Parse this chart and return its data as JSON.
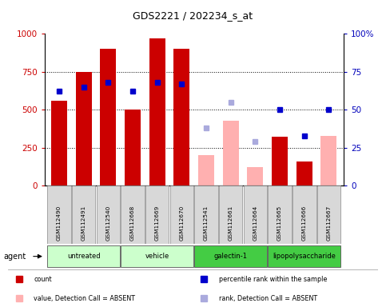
{
  "title": "GDS2221 / 202234_s_at",
  "samples": [
    "GSM112490",
    "GSM112491",
    "GSM112540",
    "GSM112668",
    "GSM112669",
    "GSM112670",
    "GSM112541",
    "GSM112661",
    "GSM112664",
    "GSM112665",
    "GSM112666",
    "GSM112667"
  ],
  "bar_values": [
    560,
    750,
    900,
    500,
    970,
    900,
    null,
    null,
    null,
    320,
    160,
    null
  ],
  "bar_absent_values": [
    null,
    null,
    null,
    null,
    null,
    null,
    200,
    430,
    125,
    null,
    null,
    330
  ],
  "rank_markers": [
    62,
    65,
    68,
    62,
    68,
    67,
    null,
    null,
    null,
    50,
    33,
    50
  ],
  "rank_absent_markers": [
    null,
    null,
    null,
    null,
    null,
    null,
    38,
    55,
    29,
    null,
    null,
    null
  ],
  "ylim_left": [
    0,
    1000
  ],
  "ylim_right": [
    0,
    100
  ],
  "yticks_left": [
    0,
    250,
    500,
    750,
    1000
  ],
  "yticks_right": [
    0,
    25,
    50,
    75,
    100
  ],
  "bar_color": "#cc0000",
  "bar_absent_color": "#ffb0b0",
  "rank_color": "#0000cc",
  "rank_absent_color": "#aaaadd",
  "left_axis_color": "#cc0000",
  "right_axis_color": "#0000bb",
  "bar_width": 0.65,
  "group_defs": [
    {
      "name": "untreated",
      "start": 0,
      "end": 2,
      "color": "#ccffcc"
    },
    {
      "name": "vehicle",
      "start": 3,
      "end": 5,
      "color": "#ccffcc"
    },
    {
      "name": "galectin-1",
      "start": 6,
      "end": 8,
      "color": "#44cc44"
    },
    {
      "name": "lipopolysaccharide",
      "start": 9,
      "end": 11,
      "color": "#44cc44"
    }
  ],
  "legend_items": [
    {
      "label": "count",
      "color": "#cc0000",
      "type": "bar"
    },
    {
      "label": "percentile rank within the sample",
      "color": "#0000cc",
      "type": "sq"
    },
    {
      "label": "value, Detection Call = ABSENT",
      "color": "#ffb0b0",
      "type": "bar"
    },
    {
      "label": "rank, Detection Call = ABSENT",
      "color": "#aaaadd",
      "type": "sq"
    }
  ]
}
